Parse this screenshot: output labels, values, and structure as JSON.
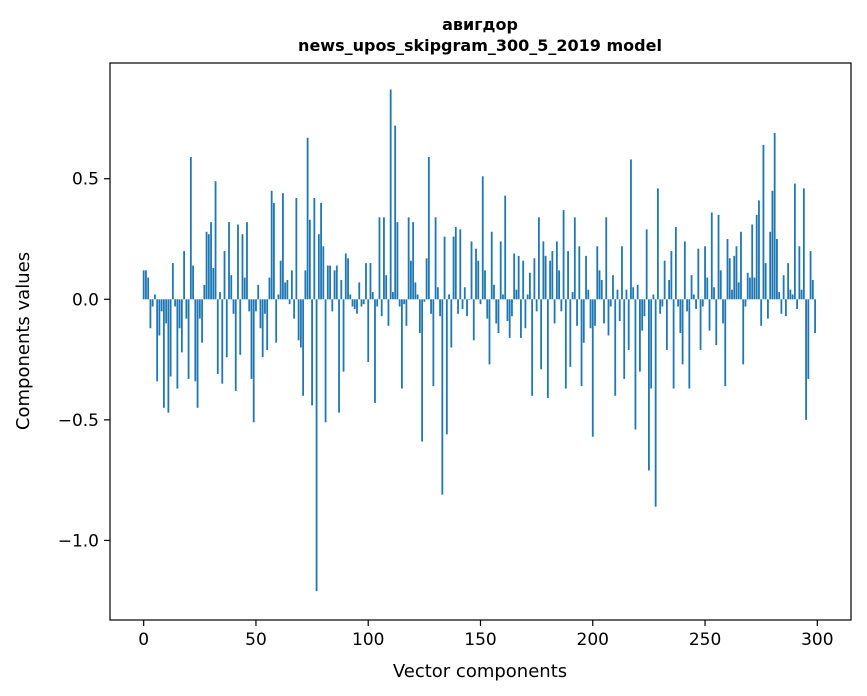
{
  "chart_data": {
    "type": "bar",
    "title_line1": "авигдор",
    "title_line2": "news_upos_skipgram_300_5_2019 model",
    "xlabel": "Vector components",
    "ylabel": "Components values",
    "xlim": [
      -15,
      315
    ],
    "ylim": [
      -1.33,
      0.98
    ],
    "x_ticks": [
      0,
      50,
      100,
      150,
      200,
      250,
      300
    ],
    "x_tick_labels": [
      "0",
      "50",
      "100",
      "150",
      "200",
      "250",
      "300"
    ],
    "y_ticks": [
      -1.0,
      -0.5,
      0.0,
      0.5
    ],
    "y_tick_labels": [
      "−1.0",
      "−0.5",
      "0.0",
      "0.5"
    ],
    "grid": false,
    "bar_color": "#1f77b4",
    "values": [
      0.12,
      0.12,
      0.09,
      -0.12,
      -0.03,
      0.02,
      -0.34,
      -0.15,
      -0.05,
      -0.45,
      -0.1,
      -0.47,
      -0.32,
      0.15,
      -0.03,
      -0.37,
      -0.12,
      -0.22,
      0.2,
      -0.08,
      -0.33,
      0.59,
      0.14,
      -0.34,
      -0.45,
      -0.08,
      -0.18,
      0.06,
      0.28,
      0.27,
      0.32,
      0.13,
      0.49,
      -0.31,
      0.03,
      -0.35,
      0.2,
      -0.24,
      0.32,
      0.1,
      -0.06,
      -0.38,
      0.31,
      -0.23,
      0.27,
      0.09,
      0.32,
      -0.05,
      -0.33,
      -0.51,
      -0.05,
      0.06,
      -0.12,
      -0.24,
      -0.06,
      -0.21,
      0.09,
      0.45,
      0.4,
      -0.18,
      0.02,
      0.16,
      0.44,
      0.07,
      0.08,
      -0.02,
      0.12,
      -0.08,
      0.42,
      -0.17,
      -0.2,
      -0.4,
      0.12,
      0.67,
      0.33,
      -0.44,
      0.42,
      -1.21,
      0.27,
      0.4,
      0.22,
      -0.51,
      0.14,
      0.14,
      -0.05,
      0.12,
      0.14,
      -0.47,
      0.08,
      -0.3,
      0.19,
      0.17,
      0.02,
      -0.03,
      -0.04,
      -0.06,
      0.07,
      -0.03,
      -0.02,
      0.15,
      -0.26,
      0.15,
      0.03,
      -0.43,
      -0.03,
      0.34,
      -0.07,
      0.34,
      0.1,
      -0.11,
      0.87,
      0.03,
      0.72,
      0.32,
      -0.03,
      -0.37,
      -0.02,
      -0.11,
      0.34,
      0.16,
      0.32,
      0.07,
      0.02,
      -0.14,
      -0.59,
      -0.01,
      0.17,
      0.59,
      -0.06,
      -0.36,
      0.34,
      0.05,
      -0.07,
      -0.81,
      0.26,
      -0.56,
      0.02,
      -0.2,
      0.26,
      0.3,
      -0.06,
      0.29,
      -0.04,
      0.05,
      -0.07,
      0.0,
      0.24,
      -0.17,
      0.21,
      0.16,
      -0.02,
      0.51,
      0.12,
      -0.08,
      -0.27,
      0.28,
      0.06,
      -0.1,
      -0.14,
      0.24,
      0.02,
      0.43,
      -0.09,
      -0.16,
      -0.07,
      0.19,
      0.04,
      0.18,
      -0.16,
      0.16,
      -0.12,
      0.02,
      0.11,
      -0.4,
      0.17,
      -0.05,
      0.34,
      -0.29,
      0.24,
      0.18,
      -0.41,
      0.16,
      0.2,
      -0.1,
      0.24,
      0.12,
      -0.05,
      0.37,
      -0.37,
      0.2,
      -0.28,
      0.03,
      0.34,
      -0.11,
      0.22,
      -0.36,
      -0.18,
      0.18,
      0.04,
      -0.12,
      -0.57,
      -0.11,
      0.22,
      0.12,
      0.08,
      -0.1,
      0.34,
      -0.15,
      -0.03,
      0.1,
      -0.4,
      0.04,
      -0.09,
      0.22,
      -0.33,
      0.04,
      -0.21,
      0.58,
      0.05,
      -0.54,
      0.06,
      -0.3,
      -0.13,
      -0.07,
      0.29,
      -0.71,
      -0.37,
      0.02,
      -0.86,
      0.46,
      -0.06,
      -0.03,
      0.16,
      -0.21,
      0.08,
      0.2,
      -0.37,
      0.3,
      -0.03,
      -0.14,
      -0.27,
      0.24,
      -0.05,
      -0.37,
      0.1,
      0.02,
      -0.04,
      0.21,
      -0.21,
      -0.03,
      0.22,
      0.09,
      -0.13,
      0.36,
      0.05,
      -0.19,
      0.35,
      0.12,
      -0.1,
      -0.36,
      0.25,
      0.17,
      0.04,
      0.18,
      0.22,
      0.07,
      0.28,
      -0.27,
      -0.03,
      0.11,
      0.09,
      0.31,
      0.09,
      0.35,
      0.41,
      -0.11,
      0.64,
      0.15,
      -0.08,
      0.28,
      0.45,
      0.69,
      0.25,
      0.03,
      -0.06,
      0.1,
      -0.07,
      0.15,
      0.04,
      0.02,
      0.48,
      -0.04,
      0.22,
      0.04,
      0.46,
      -0.5,
      -0.33,
      0.2,
      0.08,
      -0.14
    ]
  }
}
